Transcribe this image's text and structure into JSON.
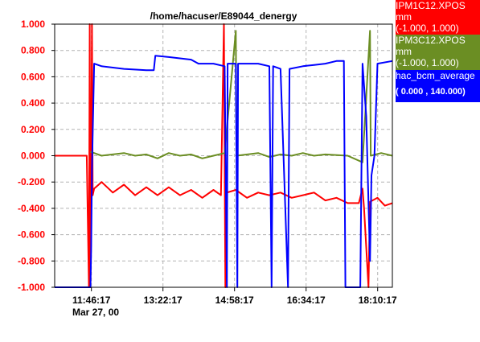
{
  "chart_data": {
    "type": "line",
    "title": "/home/hacuser/E89044_denergy",
    "y_ticks": [
      "1.000",
      "0.800",
      "0.600",
      "0.400",
      "0.200",
      "0.000",
      "-0.200",
      "-0.400",
      "-0.600",
      "-0.800",
      "-1.000"
    ],
    "ylim": [
      -1.0,
      1.0
    ],
    "y_axis_color": "#ff0000",
    "x_ticks": [
      "11:46:17",
      "13:22:17",
      "14:58:17",
      "16:34:17",
      "18:10:17"
    ],
    "date_label": "Mar 27, 00",
    "xlim": [
      "10:57",
      "18:30"
    ],
    "grid": true,
    "legend_position": "right",
    "series": [
      {
        "name": "IPM1C12.XPOS",
        "unit": "mm",
        "range": "(-1.000,  1.000)",
        "color": "#ff0000",
        "points": [
          [
            "10:57",
            0.0
          ],
          [
            "11:40",
            0.0
          ],
          [
            "11:43",
            -1.0
          ],
          [
            "11:44",
            1.0
          ],
          [
            "11:45",
            -1.0
          ],
          [
            "11:47",
            1.0
          ],
          [
            "11:48",
            -0.3
          ],
          [
            "11:50",
            -0.25
          ],
          [
            "12:00",
            -0.2
          ],
          [
            "12:15",
            -0.28
          ],
          [
            "12:30",
            -0.22
          ],
          [
            "12:45",
            -0.3
          ],
          [
            "13:00",
            -0.24
          ],
          [
            "13:15",
            -0.3
          ],
          [
            "13:30",
            -0.24
          ],
          [
            "13:45",
            -0.3
          ],
          [
            "14:00",
            -0.26
          ],
          [
            "14:15",
            -0.32
          ],
          [
            "14:30",
            -0.26
          ],
          [
            "14:40",
            -0.3
          ],
          [
            "14:44",
            1.0
          ],
          [
            "14:46",
            -1.0
          ],
          [
            "14:48",
            -0.28
          ],
          [
            "15:00",
            -0.26
          ],
          [
            "15:15",
            -0.32
          ],
          [
            "15:30",
            -0.28
          ],
          [
            "15:45",
            -0.3
          ],
          [
            "16:00",
            -0.28
          ],
          [
            "16:15",
            -0.32
          ],
          [
            "16:30",
            -0.3
          ],
          [
            "16:45",
            -0.28
          ],
          [
            "17:00",
            -0.34
          ],
          [
            "17:15",
            -0.32
          ],
          [
            "17:30",
            -0.36
          ],
          [
            "17:45",
            -0.36
          ],
          [
            "17:50",
            -0.25
          ],
          [
            "17:52",
            -0.4
          ],
          [
            "17:58",
            -1.0
          ],
          [
            "18:00",
            -0.35
          ],
          [
            "18:10",
            -0.32
          ],
          [
            "18:20",
            -0.38
          ],
          [
            "18:30",
            -0.36
          ]
        ]
      },
      {
        "name": "IPM3C12.XPOS",
        "unit": "mm",
        "range": "(-1.000,  1.000)",
        "color": "#6b8e23",
        "points": [
          [
            "11:45",
            0.03
          ],
          [
            "12:00",
            0.0
          ],
          [
            "12:30",
            0.02
          ],
          [
            "12:45",
            0.0
          ],
          [
            "13:00",
            0.01
          ],
          [
            "13:15",
            -0.02
          ],
          [
            "13:30",
            0.02
          ],
          [
            "13:45",
            0.0
          ],
          [
            "14:00",
            0.01
          ],
          [
            "14:15",
            -0.02
          ],
          [
            "14:30",
            0.0
          ],
          [
            "14:45",
            0.02
          ],
          [
            "15:00",
            0.95
          ],
          [
            "15:01",
            0.0
          ],
          [
            "15:30",
            0.02
          ],
          [
            "15:45",
            -0.01
          ],
          [
            "16:00",
            0.01
          ],
          [
            "16:15",
            0.0
          ],
          [
            "16:30",
            0.02
          ],
          [
            "16:45",
            0.0
          ],
          [
            "17:00",
            0.01
          ],
          [
            "17:30",
            0.0
          ],
          [
            "17:50",
            -0.05
          ],
          [
            "18:00",
            0.95
          ],
          [
            "18:01",
            0.0
          ],
          [
            "18:15",
            0.02
          ],
          [
            "18:30",
            0.0
          ]
        ]
      },
      {
        "name": "hac_bcm_average",
        "unit": "",
        "range": "( 0.000 ,  140.000)",
        "color": "#0000ff",
        "points": [
          [
            "10:57",
            -1.0
          ],
          [
            "11:45",
            -1.0
          ],
          [
            "11:46",
            -0.7
          ],
          [
            "11:47",
            -0.1
          ],
          [
            "11:50",
            0.7
          ],
          [
            "12:00",
            0.68
          ],
          [
            "12:30",
            0.66
          ],
          [
            "13:00",
            0.65
          ],
          [
            "13:10",
            0.65
          ],
          [
            "13:12",
            0.76
          ],
          [
            "13:30",
            0.75
          ],
          [
            "14:00",
            0.73
          ],
          [
            "14:10",
            0.7
          ],
          [
            "14:30",
            0.7
          ],
          [
            "14:45",
            0.68
          ],
          [
            "14:48",
            -1.0
          ],
          [
            "14:49",
            0.7
          ],
          [
            "15:00",
            0.7
          ],
          [
            "15:02",
            -1.0
          ],
          [
            "15:03",
            0.7
          ],
          [
            "15:30",
            0.7
          ],
          [
            "15:45",
            0.68
          ],
          [
            "15:48",
            -1.0
          ],
          [
            "15:50",
            0.68
          ],
          [
            "16:00",
            0.66
          ],
          [
            "16:10",
            -1.0
          ],
          [
            "16:12",
            0.66
          ],
          [
            "16:30",
            0.68
          ],
          [
            "16:45",
            0.69
          ],
          [
            "17:00",
            0.7
          ],
          [
            "17:15",
            0.72
          ],
          [
            "17:25",
            0.72
          ],
          [
            "17:27",
            -1.0
          ],
          [
            "17:47",
            -1.0
          ],
          [
            "17:50",
            0.7
          ],
          [
            "17:55",
            0.3
          ],
          [
            "18:00",
            -0.8
          ],
          [
            "18:02",
            -0.15
          ],
          [
            "18:06",
            0.0
          ],
          [
            "18:10",
            0.7
          ],
          [
            "18:30",
            0.72
          ]
        ]
      }
    ]
  }
}
